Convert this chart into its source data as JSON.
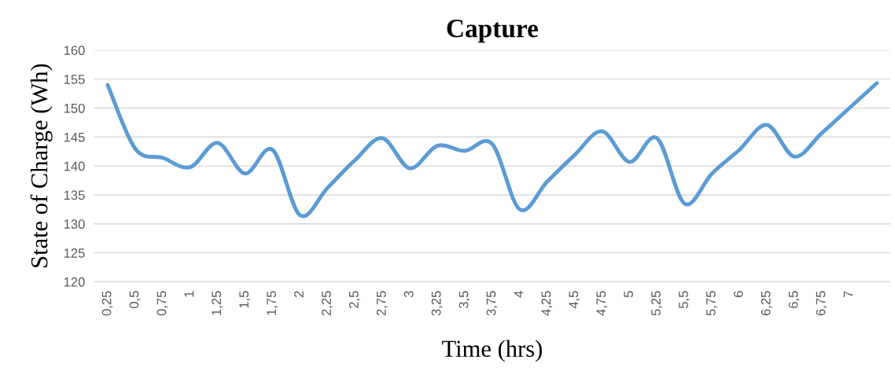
{
  "chart_data": {
    "type": "line",
    "title": "Capture",
    "xlabel": "Time (hrs)",
    "ylabel": "State of Charge (Wh)",
    "categories": [
      "0,25",
      "0,5",
      "0,75",
      "1",
      "1,25",
      "1,5",
      "1,75",
      "2",
      "2,25",
      "2,5",
      "2,75",
      "3",
      "3,25",
      "3,5",
      "3,75",
      "4",
      "4,25",
      "4,5",
      "4,75",
      "5",
      "5,25",
      "5,5",
      "5,75",
      "6",
      "6,25",
      "6,5",
      "6,75",
      "7",
      null
    ],
    "series": [
      {
        "color": "#5b9bd5",
        "values": [
          154,
          143,
          141.4,
          139.8,
          144,
          138.7,
          142.8,
          131.5,
          136.2,
          141,
          144.8,
          139.6,
          143.5,
          142.6,
          143.8,
          132.5,
          137.3,
          141.9,
          146,
          140.7,
          144.8,
          133.5,
          138.7,
          142.8,
          147.1,
          141.6,
          145.7,
          150,
          154.3
        ]
      }
    ],
    "ylim": [
      120,
      160
    ],
    "yticks": [
      120,
      125,
      130,
      135,
      140,
      145,
      150,
      155,
      160
    ],
    "grid": "y",
    "marker": "none",
    "line_style": "solid"
  }
}
